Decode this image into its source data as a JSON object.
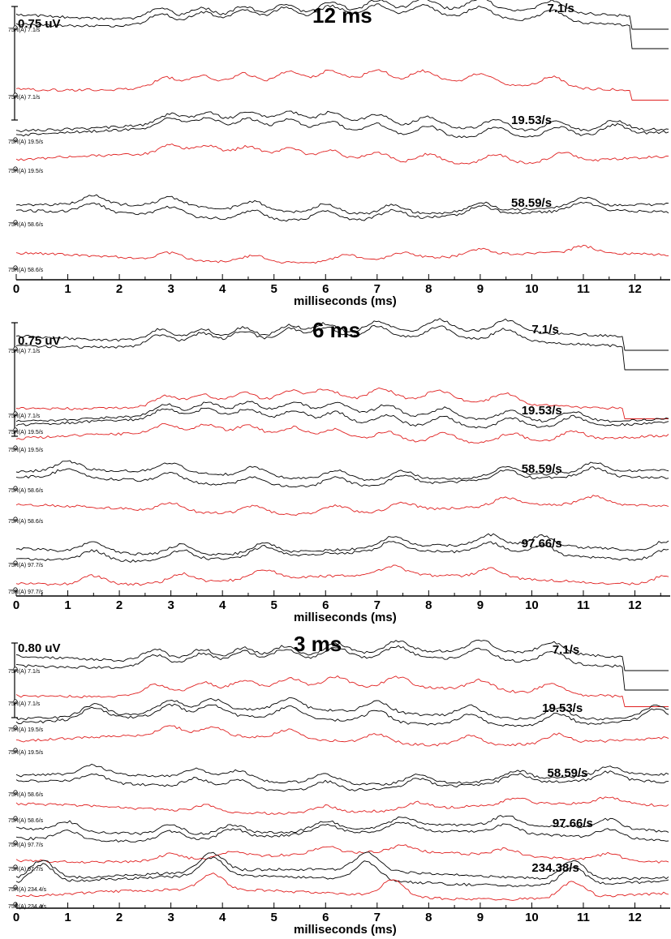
{
  "chart_data": [
    {
      "type": "line",
      "title": "12 ms",
      "scale_label": "0.75 uV",
      "xlabel": "milliseconds (ms)",
      "x_ticks": [
        "0",
        "1",
        "2",
        "3",
        "4",
        "5",
        "6",
        "7",
        "8",
        "9",
        "10",
        "11",
        "12"
      ],
      "xlim": [
        0,
        12.7
      ],
      "rate_labels": [
        {
          "text": "7.1/s",
          "at_ms": 10.3
        },
        {
          "text": "19.53/s",
          "at_ms": 9.6
        },
        {
          "text": "58.59/s",
          "at_ms": 9.6
        }
      ],
      "traces": [
        {
          "label": "75R(A) 7.1/s",
          "color": "#000000",
          "count": 2,
          "stop_ms": 11.9,
          "peaks_ms": [
            2.8,
            3.6,
            4.4,
            5.2,
            6.1,
            7.0,
            7.9,
            9.0,
            10.4
          ],
          "amp": 1.0
        },
        {
          "label": "75R(A) 7.1/s",
          "color": "#e02020",
          "count": 1,
          "stop_ms": 11.9,
          "peaks_ms": [
            2.9,
            3.6,
            4.4,
            5.3,
            6.1,
            7.0,
            7.9,
            9.0,
            10.4
          ],
          "amp": 0.9
        },
        {
          "label": "75R(A) 19.5/s",
          "color": "#000000",
          "count": 2,
          "stop_ms": null,
          "peaks_ms": [
            3.0,
            3.7,
            4.5,
            5.3,
            6.1,
            7.0,
            8.0,
            9.3,
            10.5,
            11.6
          ],
          "amp": 0.9
        },
        {
          "label": "75R(A) 19.5/s",
          "color": "#e02020",
          "count": 1,
          "stop_ms": null,
          "peaks_ms": [
            3.0,
            3.7,
            4.5,
            5.3,
            6.1,
            7.0,
            8.0,
            9.3,
            10.6
          ],
          "amp": 0.8
        },
        {
          "label": "75R(A) 58.6/s",
          "color": "#000000",
          "count": 2,
          "stop_ms": null,
          "peaks_ms": [
            1.5,
            3.0,
            4.6,
            6.0,
            7.3,
            9.0,
            11.0
          ],
          "amp": 0.8
        },
        {
          "label": "75R(A) 58.6/s",
          "color": "#e02020",
          "count": 1,
          "stop_ms": null,
          "peaks_ms": [
            3.0,
            4.6,
            6.4,
            7.5,
            9.0,
            11.0
          ],
          "amp": 0.6
        }
      ]
    },
    {
      "type": "line",
      "title": "6 ms",
      "scale_label": "0.75 uV",
      "xlabel": "milliseconds (ms)",
      "x_ticks": [
        "0",
        "1",
        "2",
        "3",
        "4",
        "5",
        "6",
        "7",
        "8",
        "9",
        "10",
        "11",
        "12"
      ],
      "xlim": [
        0,
        12.7
      ],
      "rate_labels": [
        {
          "text": "7.1/s",
          "at_ms": 10.0
        },
        {
          "text": "19.53/s",
          "at_ms": 9.8
        },
        {
          "text": "58.59/s",
          "at_ms": 9.8
        },
        {
          "text": "97.66/s",
          "at_ms": 9.8
        }
      ],
      "traces": [
        {
          "label": "75R(A) 7.1/s",
          "color": "#000000",
          "count": 2,
          "stop_ms": 11.8,
          "peaks_ms": [
            2.8,
            3.6,
            4.4,
            5.3,
            6.0,
            7.0,
            8.2,
            9.5
          ],
          "amp": 1.0
        },
        {
          "label": "75R(A) 7.1/s",
          "color": "#e02020",
          "count": 1,
          "stop_ms": 11.8,
          "peaks_ms": [
            2.9,
            3.6,
            4.4,
            5.3,
            6.0,
            7.1,
            8.2,
            9.5
          ],
          "amp": 0.9
        },
        {
          "label": "75R(A) 19.5/s",
          "color": "#000000",
          "count": 2,
          "stop_ms": null,
          "peaks_ms": [
            2.9,
            3.7,
            4.5,
            5.4,
            6.2,
            7.2,
            8.3,
            9.6,
            10.8
          ],
          "amp": 0.9
        },
        {
          "label": "75R(A) 19.5/s",
          "color": "#e02020",
          "count": 1,
          "stop_ms": null,
          "peaks_ms": [
            2.9,
            3.7,
            4.5,
            5.4,
            6.2,
            7.2,
            8.3,
            9.6,
            10.8
          ],
          "amp": 0.8
        },
        {
          "label": "75R(A) 58.6/s",
          "color": "#000000",
          "count": 2,
          "stop_ms": null,
          "peaks_ms": [
            1.0,
            3.0,
            4.6,
            6.2,
            7.5,
            9.5,
            11.2
          ],
          "amp": 0.8
        },
        {
          "label": "75R(A) 58.6/s",
          "color": "#e02020",
          "count": 1,
          "stop_ms": null,
          "peaks_ms": [
            3.0,
            4.6,
            6.2,
            7.5,
            9.5,
            11.2
          ],
          "amp": 0.7
        },
        {
          "label": "75R(A) 97.7/s",
          "color": "#000000",
          "count": 2,
          "stop_ms": null,
          "peaks_ms": [
            1.5,
            3.2,
            4.8,
            7.3,
            9.2,
            10.2,
            12.6
          ],
          "amp": 0.9
        },
        {
          "label": "75R(A) 97.7/s",
          "color": "#e02020",
          "count": 1,
          "stop_ms": null,
          "peaks_ms": [
            1.5,
            3.2,
            4.8,
            7.3,
            9.2,
            12.6
          ],
          "amp": 0.8
        }
      ]
    },
    {
      "type": "line",
      "title": "3 ms",
      "scale_label": "0.80 uV",
      "xlabel": "milliseconds (ms)",
      "x_ticks": [
        "0",
        "1",
        "2",
        "3",
        "4",
        "5",
        "6",
        "7",
        "8",
        "9",
        "10",
        "11",
        "12"
      ],
      "xlim": [
        0,
        12.7
      ],
      "rate_labels": [
        {
          "text": "7.1/s",
          "at_ms": 10.4
        },
        {
          "text": "19.53/s",
          "at_ms": 10.2
        },
        {
          "text": "58.59/s",
          "at_ms": 10.3
        },
        {
          "text": "97.66/s",
          "at_ms": 10.4
        },
        {
          "text": "234.38/s",
          "at_ms": 10.0
        }
      ],
      "traces": [
        {
          "label": "75R(A) 7.1/s",
          "color": "#000000",
          "count": 2,
          "stop_ms": 11.8,
          "peaks_ms": [
            2.7,
            3.6,
            4.4,
            5.2,
            6.2,
            7.4,
            9.0,
            10.4
          ],
          "amp": 1.0
        },
        {
          "label": "75R(A) 7.1/s",
          "color": "#e02020",
          "count": 1,
          "stop_ms": 11.8,
          "peaks_ms": [
            2.7,
            3.6,
            4.4,
            5.3,
            6.2,
            7.4,
            9.0,
            10.4
          ],
          "amp": 0.9
        },
        {
          "label": "75R(A) 19.5/s",
          "color": "#000000",
          "count": 2,
          "stop_ms": null,
          "peaks_ms": [
            1.5,
            3.0,
            3.8,
            5.3,
            7.0,
            8.8,
            10.5,
            12.4
          ],
          "amp": 1.0
        },
        {
          "label": "75R(A) 19.5/s",
          "color": "#e02020",
          "count": 1,
          "stop_ms": null,
          "peaks_ms": [
            3.0,
            3.8,
            5.3,
            7.0,
            8.8,
            10.5
          ],
          "amp": 0.8
        },
        {
          "label": "75R(A) 58.6/s",
          "color": "#000000",
          "count": 2,
          "stop_ms": null,
          "peaks_ms": [
            1.5,
            3.5,
            4.3,
            6.0,
            7.8,
            9.7,
            11.5
          ],
          "amp": 0.8
        },
        {
          "label": "75R(A) 58.6/s",
          "color": "#e02020",
          "count": 1,
          "stop_ms": null,
          "peaks_ms": [
            3.7,
            6.0,
            7.8,
            9.7,
            11.5
          ],
          "amp": 0.6
        },
        {
          "label": "75R(A) 97.7/s",
          "color": "#000000",
          "count": 2,
          "stop_ms": null,
          "peaks_ms": [
            1.0,
            3.0,
            4.2,
            6.0,
            7.5,
            9.5,
            11.5
          ],
          "amp": 0.8
        },
        {
          "label": "75R(A) 97.7/s",
          "color": "#e02020",
          "count": 1,
          "stop_ms": null,
          "peaks_ms": [
            3.0,
            4.2,
            6.0,
            7.5,
            9.5,
            11.5
          ],
          "amp": 0.6
        },
        {
          "label": "75R(A) 234.4/s",
          "color": "#000000",
          "count": 2,
          "stop_ms": null,
          "peaks_ms": [
            0.5,
            3.8,
            6.8,
            10.8
          ],
          "amp": 1.6
        },
        {
          "label": "75R(A) 234.4/s",
          "color": "#e02020",
          "count": 1,
          "stop_ms": null,
          "peaks_ms": [
            3.8,
            7.3,
            10.8
          ],
          "amp": 1.4
        }
      ]
    }
  ]
}
